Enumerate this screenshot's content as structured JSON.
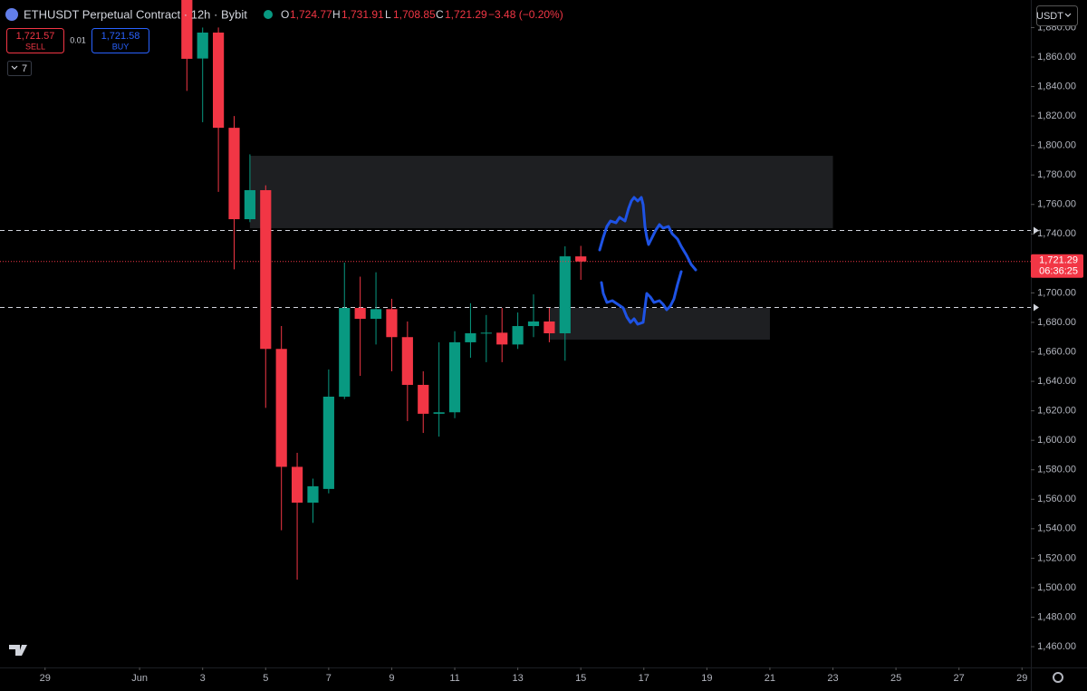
{
  "header": {
    "title": "ETHUSDT Perpetual Contract · 12h · Bybit",
    "o_label": "O",
    "o": "1,724.77",
    "h_label": "H",
    "h": "1,731.91",
    "l_label": "L",
    "l": "1,708.85",
    "c_label": "C",
    "c": "1,721.29",
    "change": "−3.48 (−0.20%)"
  },
  "trade": {
    "sell_price": "1,721.57",
    "sell": "SELL",
    "spread": "0.01",
    "buy_price": "1,721.58",
    "buy": "BUY"
  },
  "indicators_count": "7",
  "currency": "USDT",
  "price_tag": {
    "price": "1,721.29",
    "countdown": "06:36:25"
  },
  "chart_data": {
    "type": "candlestick",
    "up_color": "#089981",
    "down_color": "#f23645",
    "x": [
      2.5,
      3,
      3.5,
      4,
      4.5,
      5,
      5.5,
      6,
      6.5,
      7,
      7.5,
      8,
      8.5,
      9,
      9.5,
      10,
      10.5,
      11,
      11.5,
      12,
      12.5,
      13,
      13.5,
      14,
      14.5,
      15
    ],
    "open": [
      1905,
      1859,
      1876.6,
      1812,
      1750,
      1769.7,
      1662,
      1582,
      1557.7,
      1567,
      1629.6,
      1689.8,
      1682.4,
      1689,
      1670,
      1637.6,
      1618,
      1619,
      1666.5,
      1672.6,
      1673,
      1665,
      1677.5,
      1680.6,
      1672.6,
      1724.77
    ],
    "high": [
      1920,
      1880,
      1880,
      1820,
      1794,
      1773,
      1677.5,
      1591.5,
      1574,
      1648,
      1720.5,
      1711,
      1714,
      1696,
      1680.6,
      1646.8,
      1666.5,
      1674,
      1693,
      1685,
      1689.8,
      1686.7,
      1699,
      1689.8,
      1731.6,
      1731.91
    ],
    "low": [
      1837,
      1815.8,
      1768.5,
      1716,
      1748,
      1622,
      1539,
      1505.5,
      1544,
      1564,
      1628,
      1643.7,
      1665,
      1646.8,
      1613,
      1605,
      1602.5,
      1615,
      1656,
      1653,
      1653,
      1662,
      1670,
      1666.5,
      1654,
      1708.85
    ],
    "close": [
      1858.8,
      1876.6,
      1812,
      1750,
      1769.7,
      1662,
      1582,
      1557.7,
      1568.8,
      1629.6,
      1689.8,
      1682.4,
      1689,
      1670,
      1637.6,
      1618,
      1619,
      1666.5,
      1672.6,
      1673,
      1665,
      1677.5,
      1680.6,
      1672.6,
      1724.8,
      1721.29
    ],
    "xlim": [
      -3.43,
      29.28
    ],
    "xticks": [
      {
        "value": -2,
        "label": "29"
      },
      {
        "value": 1,
        "label": "Jun"
      },
      3,
      5,
      7,
      9,
      11,
      13,
      15,
      17,
      19,
      21,
      23,
      25,
      27,
      29
    ],
    "ylim": [
      1445.9,
      1898.7
    ],
    "yticks": [
      {
        "value": 1460,
        "label": "1,460.00"
      },
      {
        "value": 1480,
        "label": "1,480.00"
      },
      {
        "value": 1500,
        "label": "1,500.00"
      },
      {
        "value": 1520,
        "label": "1,520.00"
      },
      {
        "value": 1540,
        "label": "1,540.00"
      },
      {
        "value": 1560,
        "label": "1,560.00"
      },
      {
        "value": 1580,
        "label": "1,580.00"
      },
      {
        "value": 1600,
        "label": "1,600.00"
      },
      {
        "value": 1620,
        "label": "1,620.00"
      },
      {
        "value": 1640,
        "label": "1,640.00"
      },
      {
        "value": 1660,
        "label": "1,660.00"
      },
      {
        "value": 1680,
        "label": "1,680.00"
      },
      {
        "value": 1700,
        "label": "1,700.00"
      },
      {
        "value": 1720,
        "label": "1,720.00"
      },
      {
        "value": 1740,
        "label": "1,740.00"
      },
      {
        "value": 1760,
        "label": "1,760.00"
      },
      {
        "value": 1780,
        "label": "1,780.00"
      },
      {
        "value": 1800,
        "label": "1,800.00"
      },
      {
        "value": 1820,
        "label": "1,820.00"
      },
      {
        "value": 1840,
        "label": "1,840.00"
      },
      {
        "value": 1860,
        "label": "1,860.00"
      },
      {
        "value": 1880,
        "label": "1,880.00"
      }
    ],
    "zones": [
      {
        "x": [
          4.5,
          23
        ],
        "y": [
          1743.9,
          1793
        ]
      },
      {
        "x": [
          14,
          21
        ],
        "y": [
          1668.3,
          1689.8
        ]
      }
    ],
    "levels": [
      1742.6,
      1690.4
    ],
    "zone_color": "#1e1f22",
    "level_color": "#d1d4dc"
  }
}
